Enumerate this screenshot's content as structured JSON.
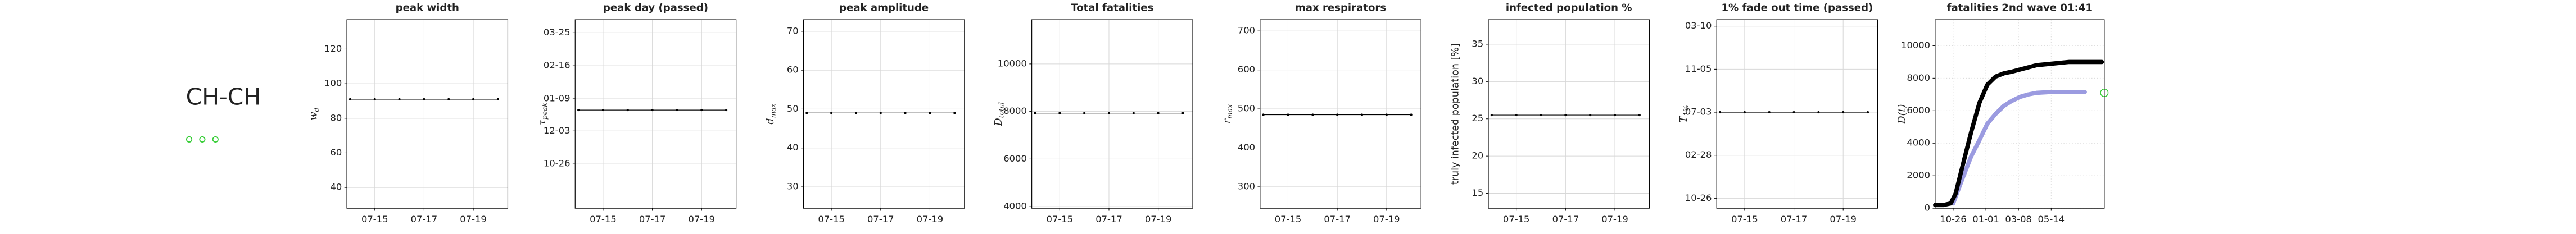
{
  "label": "CH-CH",
  "chart_data": [
    {
      "type": "line",
      "title": "peak width",
      "ylabel": {
        "main": "w",
        "sub": "d"
      },
      "categories": [
        null,
        "07-15",
        null,
        "07-17",
        null,
        "07-19",
        null
      ],
      "values": [
        91,
        91,
        91,
        91,
        91,
        91,
        91
      ],
      "color": "#000000",
      "ylim": [
        28,
        137
      ],
      "yticks": [
        40,
        60,
        80,
        100,
        120
      ],
      "grid": true
    },
    {
      "type": "line",
      "title": "peak day (passed)",
      "ylabel": {
        "main": "τ",
        "sub": "peak"
      },
      "categories": [
        null,
        "07-15",
        null,
        "07-17",
        null,
        "07-19",
        null
      ],
      "values": [
        -5,
        -5,
        -5,
        -5,
        -5,
        -5,
        -5
      ],
      "color": "#000000",
      "ylim": [
        -118,
        99
      ],
      "yticks": [
        {
          "value": -67,
          "label": "10-26"
        },
        {
          "value": -29,
          "label": "12-03"
        },
        {
          "value": 8,
          "label": "01-09"
        },
        {
          "value": 46,
          "label": "02-16"
        },
        {
          "value": 84,
          "label": "03-25"
        }
      ],
      "grid": true
    },
    {
      "type": "line",
      "title": "peak amplitude",
      "ylabel": {
        "main": "d",
        "sub": "max"
      },
      "categories": [
        null,
        "07-15",
        null,
        "07-17",
        null,
        "07-19",
        null
      ],
      "values": [
        49,
        49,
        49,
        49,
        49,
        49,
        49
      ],
      "color": "#000000",
      "ylim": [
        24.5,
        73
      ],
      "yticks": [
        30,
        40,
        50,
        60,
        70
      ],
      "grid": true
    },
    {
      "type": "line",
      "title": "Total fatalities",
      "ylabel": {
        "main": "D",
        "sub": "total"
      },
      "categories": [
        null,
        "07-15",
        null,
        "07-17",
        null,
        "07-19",
        null
      ],
      "values": [
        7930,
        7930,
        7930,
        7930,
        7930,
        7930,
        7930
      ],
      "color": "#000000",
      "ylim": [
        3930,
        11860
      ],
      "yticks": [
        4000,
        6000,
        8000,
        10000
      ],
      "grid": true
    },
    {
      "type": "line",
      "title": "max respirators",
      "ylabel": {
        "main": "r",
        "sub": "max"
      },
      "categories": [
        null,
        "07-15",
        null,
        "07-17",
        null,
        "07-19",
        null
      ],
      "values": [
        485,
        485,
        485,
        485,
        485,
        485,
        485
      ],
      "color": "#000000",
      "ylim": [
        245,
        729
      ],
      "yticks": [
        300,
        400,
        500,
        600,
        700
      ],
      "grid": true
    },
    {
      "type": "line",
      "title": "infected population %",
      "ylabel": {
        "main": "truly infected population [%]"
      },
      "categories": [
        null,
        "07-15",
        null,
        "07-17",
        null,
        "07-19",
        null
      ],
      "values": [
        25.5,
        25.5,
        25.5,
        25.5,
        25.5,
        25.5,
        25.5
      ],
      "color": "#000000",
      "ylim": [
        13,
        38.3
      ],
      "yticks": [
        15,
        20,
        25,
        30,
        35
      ],
      "grid": true
    },
    {
      "type": "line",
      "title": "1% fade out time (passed)",
      "ylabel": {
        "main": "T",
        "sub": "1%"
      },
      "categories": [
        null,
        "07-15",
        null,
        "07-17",
        null,
        "07-19",
        null
      ],
      "values": [
        250,
        250,
        250,
        250,
        250,
        250,
        250
      ],
      "color": "#000000",
      "ylim": [
        -29,
        519
      ],
      "yticks": [
        {
          "value": 0,
          "label": "10-26"
        },
        {
          "value": 125,
          "label": "02-28"
        },
        {
          "value": 250,
          "label": "07-03"
        },
        {
          "value": 375,
          "label": "11-05"
        },
        {
          "value": 500,
          "label": "03-10"
        }
      ],
      "grid": true
    },
    {
      "type": "xy",
      "title": "fatalities 2nd wave 01:41",
      "ylabel": {
        "main": "D(t)"
      },
      "xlim": [
        -37,
        310
      ],
      "ylim": [
        0,
        11600
      ],
      "xticks": [
        {
          "value": 0,
          "label": "10-26"
        },
        {
          "value": 67,
          "label": "01-01"
        },
        {
          "value": 134,
          "label": "03-08"
        },
        {
          "value": 201,
          "label": "05-14"
        }
      ],
      "yticks": [
        0,
        2000,
        4000,
        6000,
        8000,
        10000
      ],
      "grid": "dotted",
      "series": [
        {
          "color": "#9b9be0",
          "style": "line",
          "x": [
            0,
            20,
            37,
            54,
            70,
            87,
            104,
            120,
            137,
            154,
            171,
            200,
            238,
            270
          ],
          "values": [
            300,
            1900,
            3200,
            4200,
            5200,
            5800,
            6300,
            6600,
            6850,
            7000,
            7100,
            7150,
            7150,
            7150
          ]
        },
        {
          "color": "#000000",
          "style": "line",
          "x": [
            -37,
            -20,
            -5,
            5,
            20,
            37,
            54,
            70,
            87,
            104,
            120,
            171,
            238,
            305
          ],
          "values": [
            200,
            200,
            300,
            900,
            2700,
            4700,
            6500,
            7600,
            8100,
            8300,
            8400,
            8800,
            9000,
            9000
          ]
        },
        {
          "color": "#33cc33",
          "style": "marker",
          "x": [
            310
          ],
          "values": [
            7100
          ]
        }
      ]
    }
  ]
}
